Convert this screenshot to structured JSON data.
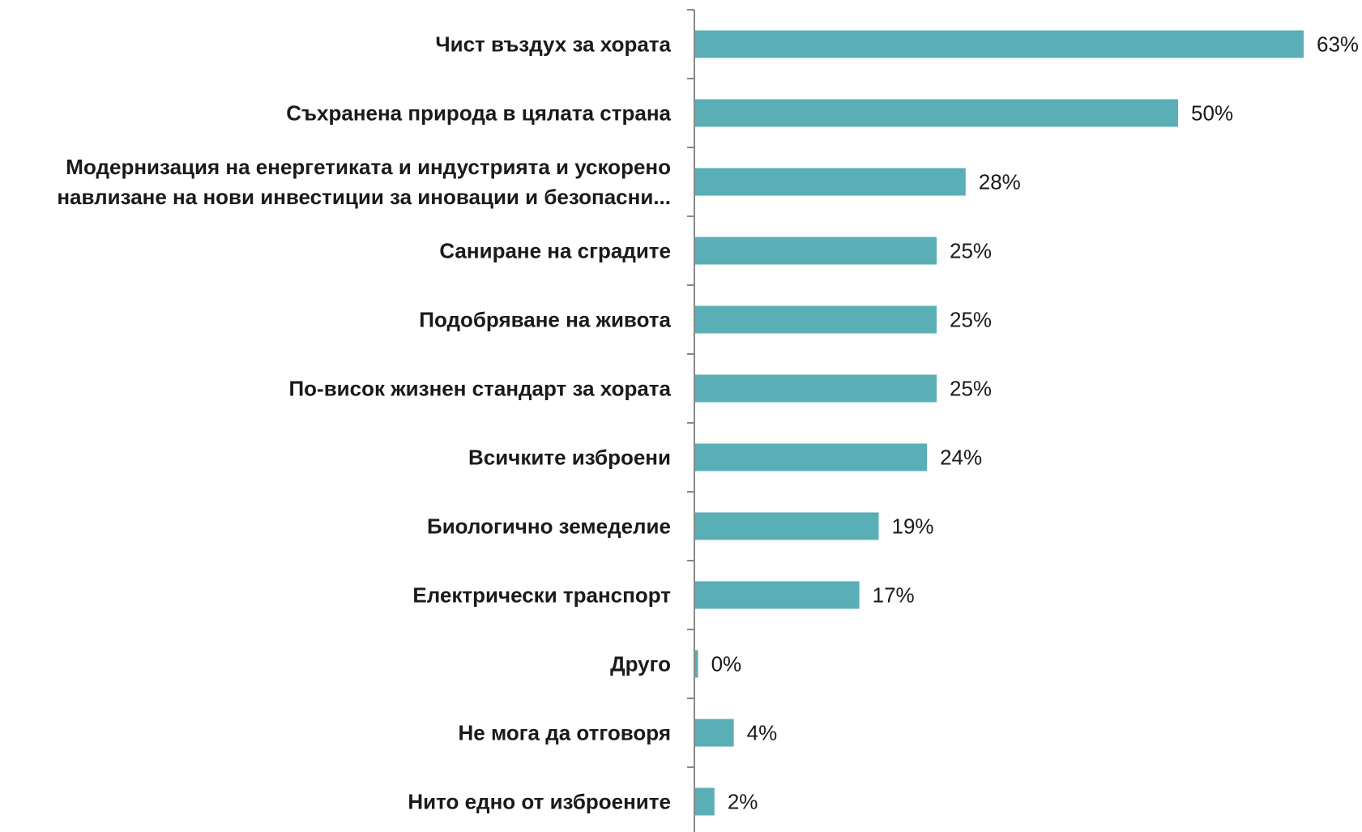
{
  "chart_data": {
    "type": "bar",
    "orientation": "horizontal",
    "categories": [
      [
        "Чист въздух за хората"
      ],
      [
        "Съхранена природа в цялата страна"
      ],
      [
        "Модернизация на енергетиката и индустрията и ускорено",
        "навлизане на нови инвестиции за иновации и безопасни..."
      ],
      [
        "Саниране на сградите"
      ],
      [
        "Подобряване на живота"
      ],
      [
        "По-висок жизнен стандарт за хората"
      ],
      [
        "Всичките изброени"
      ],
      [
        "Биологично земеделие"
      ],
      [
        "Електрически транспорт"
      ],
      [
        "Друго"
      ],
      [
        "Не мога да отговоря"
      ],
      [
        "Нито едно от изброените"
      ]
    ],
    "values": [
      63,
      50,
      28,
      25,
      25,
      25,
      24,
      19,
      17,
      0.3,
      4,
      2
    ],
    "value_labels": [
      "63%",
      "50%",
      "28%",
      "25%",
      "25%",
      "25%",
      "24%",
      "19%",
      "17%",
      "0%",
      "4%",
      "2%"
    ],
    "xlim": [
      0,
      65
    ],
    "bar_color": "#5aafb6",
    "axis_color": "#888888",
    "grid": false,
    "legend": "none"
  }
}
